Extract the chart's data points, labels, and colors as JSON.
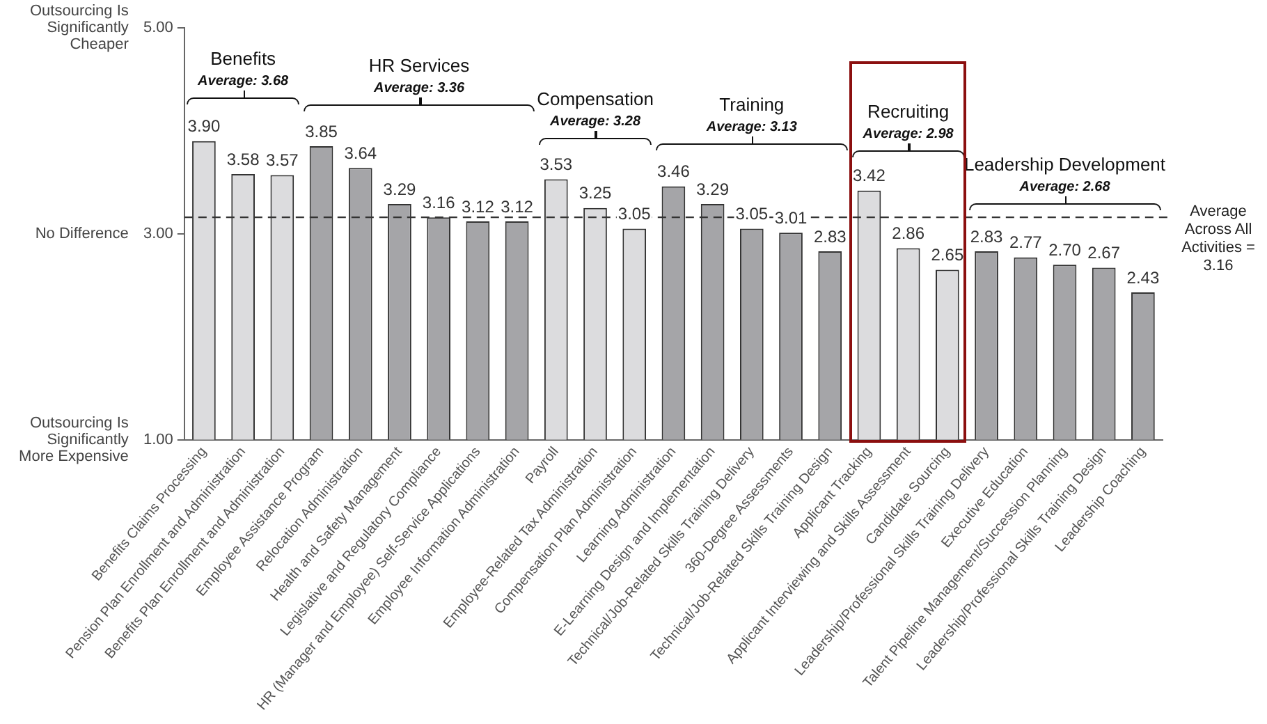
{
  "chart_data": {
    "type": "bar",
    "categories": [
      "Benefits Claims Processing",
      "Pension Plan Enrollment and Administration",
      "Benefits Plan Enrollment and Administration",
      "Employee Assistance Program",
      "Relocation Administration",
      "Health and Safety Management",
      "Legislative and Regulatory Compliance",
      "HR (Manager and Employee) Self-Service Applications",
      "Employee Information Administration",
      "Payroll",
      "Employee-Related Tax Administration",
      "Compensation Plan Administration",
      "Learning Administration",
      "E-Learning Design and Implementation",
      "Technical/Job-Related Skills Training Delivery",
      "360-Degree Assessments",
      "Technical/Job-Related Skills Training Design",
      "Applicant Tracking",
      "Applicant Interviewing and Skills Assessment",
      "Candidate Sourcing",
      "Leadership/Professional Skills Training Delivery",
      "Executive Education",
      "Talent Pipeline Management/Succession Planning",
      "Leadership/Professional Skills Training Design",
      "Leadership Coaching"
    ],
    "values": [
      3.9,
      3.58,
      3.57,
      3.85,
      3.64,
      3.29,
      3.16,
      3.12,
      3.12,
      3.53,
      3.25,
      3.05,
      3.46,
      3.29,
      3.05,
      3.01,
      2.83,
      3.42,
      2.86,
      2.65,
      2.83,
      2.77,
      2.7,
      2.67,
      2.43
    ],
    "value_labels": [
      "3.90",
      "3.58",
      "3.57",
      "3.85",
      "3.64",
      "3.29",
      "3.16",
      "3.12",
      "3.12",
      "3.53",
      "3.25",
      "3.05",
      "3.46",
      "3.29",
      "3.05",
      "3.01",
      "2.83",
      "3.42",
      "2.86",
      "2.65",
      "2.83",
      "2.77",
      "2.70",
      "2.67",
      "2.43"
    ],
    "colors": [
      "#dcdcde",
      "#dcdcde",
      "#dcdcde",
      "#a5a5a8",
      "#a5a5a8",
      "#a5a5a8",
      "#a5a5a8",
      "#a5a5a8",
      "#a5a5a8",
      "#dcdcde",
      "#dcdcde",
      "#dcdcde",
      "#a5a5a8",
      "#a5a5a8",
      "#a5a5a8",
      "#a5a5a8",
      "#a5a5a8",
      "#dcdcde",
      "#dcdcde",
      "#dcdcde",
      "#a5a5a8",
      "#a5a5a8",
      "#a5a5a8",
      "#a5a5a8",
      "#a5a5a8"
    ],
    "ylim": [
      1,
      5
    ],
    "yticks": [
      {
        "value": 1,
        "label": "1.00"
      },
      {
        "value": 3,
        "label": "3.00"
      },
      {
        "value": 5,
        "label": "5.00"
      }
    ],
    "grid": false,
    "legend": false,
    "ref_lines": [
      {
        "axis": "y",
        "value": 3.16,
        "label": "Average Across All Activities = 3.16",
        "line_style": "dashed",
        "color": "#333333"
      }
    ],
    "annotations": [
      "Outsourcing Is Significantly Cheaper",
      "No Difference",
      "Outsourcing Is Significantly More Expensive",
      "Benefits",
      "Average: 3.68",
      "HR Services",
      "Average: 3.36",
      "Compensation",
      "Average: 3.28",
      "Training",
      "Average: 3.13",
      "Recruiting",
      "Average: 2.98",
      "Leadership Development",
      "Average: 2.68"
    ]
  }
}
